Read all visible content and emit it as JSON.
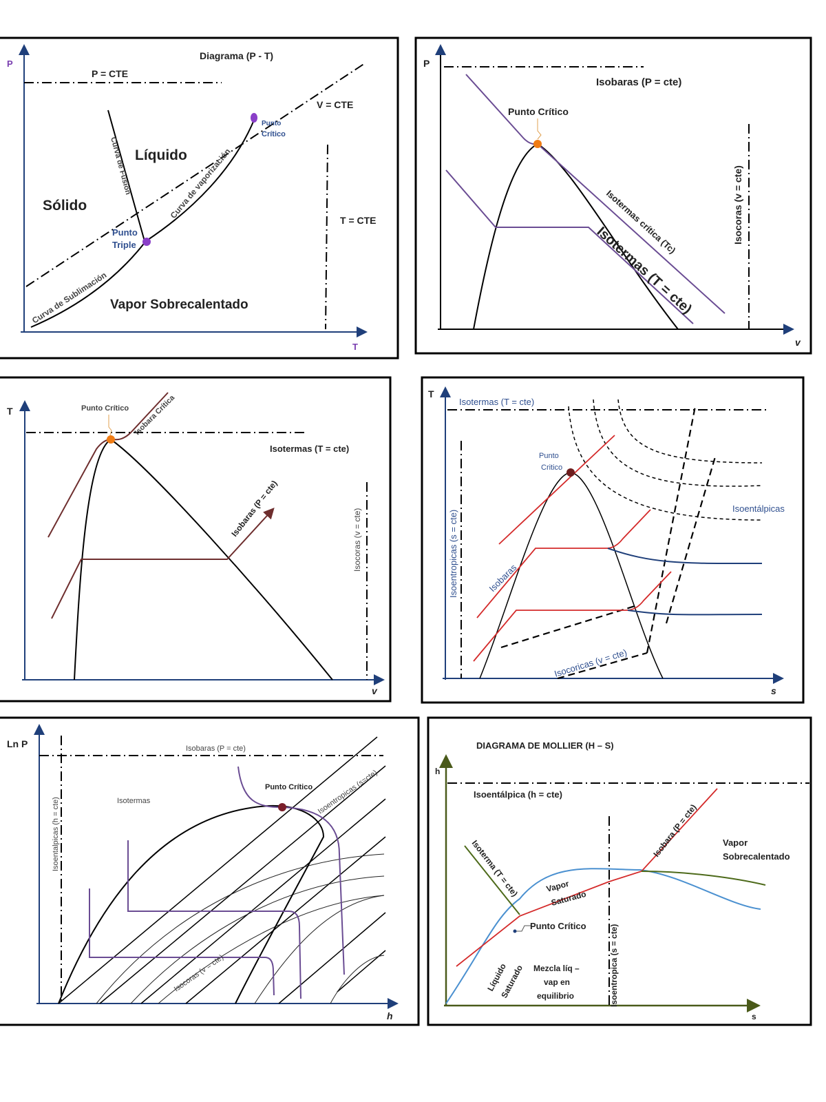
{
  "panels": {
    "pt": {
      "title": "Diagrama (P - T)",
      "y_axis": "P",
      "x_axis": "T",
      "p_cte": "P = CTE",
      "v_cte": "V = CTE",
      "t_cte": "T = CTE",
      "solido": "Sólido",
      "liquido": "Líquido",
      "vapor": "Vapor Sobrecalentado",
      "fusion": "Curva de Fusión",
      "vaporizacion": "Curva de vaporización",
      "sublimacion": "Curva de Sublimación",
      "triple_1": "Punto",
      "triple_2": "Triple",
      "critico_1": "Punto",
      "critico_2": "Crítico"
    },
    "pv": {
      "y_axis": "P",
      "x_axis": "v",
      "isobaras": "Isobaras (P = cte)",
      "punto_critico": "Punto Crítico",
      "isoterma_critica": "Isotermas crítica (Tc)",
      "isotermas": "Isotermas (T = cte)",
      "isocoras": "Isocoras (v = cte)"
    },
    "tv": {
      "y_axis": "T",
      "x_axis": "v",
      "punto_critico": "Punto Crítico",
      "isobara_critica": "Isobara Crítica",
      "isotermas": "Isotermas (T = cte)",
      "isobaras": "Isobaras (P = cte)",
      "isocoras": "Isocoras (v = cte)"
    },
    "ts": {
      "y_axis": "T",
      "x_axis": "s",
      "isotermas": "Isotermas (T = cte)",
      "punto_critico_1": "Punto",
      "punto_critico_2": "Critico",
      "isoentalpicas": "Isoentálpicas",
      "isoentropicas": "Isoentropicas (s = cte)",
      "isobaras": "Isobaras",
      "isocoricas": "Isocoricas (v = cte)"
    },
    "ph": {
      "y_axis": "Ln P",
      "x_axis": "h",
      "isobaras": "Isobaras (P = cte)",
      "isoentalpicas": "Isoentalpicas (h = cte)",
      "isotermas": "Isotermas",
      "punto_critico": "Punto Crítico",
      "isoentropicas": "Isoentropicas (s=cte)",
      "isocoras": "Isocoras (v = cte)"
    },
    "hs": {
      "title": "DIAGRAMA DE MOLLIER (H – S)",
      "y_axis": "h",
      "x_axis": "s",
      "isoentalpica": "Isoentálpica (h = cte)",
      "isobara": "Isobara (P = cte)",
      "isoterma": "Isoterma (T = cte)",
      "vapor_sobre_1": "Vapor",
      "vapor_sobre_2": "Sobrecalentado",
      "vapor_sat_1": "Vapor",
      "vapor_sat_2": "Saturado",
      "punto_critico": "Punto Crítico",
      "mezcla_1": "Mezcla líq –",
      "mezcla_2": "vap en",
      "mezcla_3": "equilibrio",
      "liquido_1": "Líquido",
      "liquido_2": "Saturado",
      "isoentropica": "Isoentropica (s = cte)"
    }
  },
  "colors": {
    "axis": "#1f3f7a",
    "critical_point_orange": "#f07c14",
    "purple": "#6a4c93",
    "red": "#d42a2a",
    "blue_curve": "#4a90d0"
  }
}
